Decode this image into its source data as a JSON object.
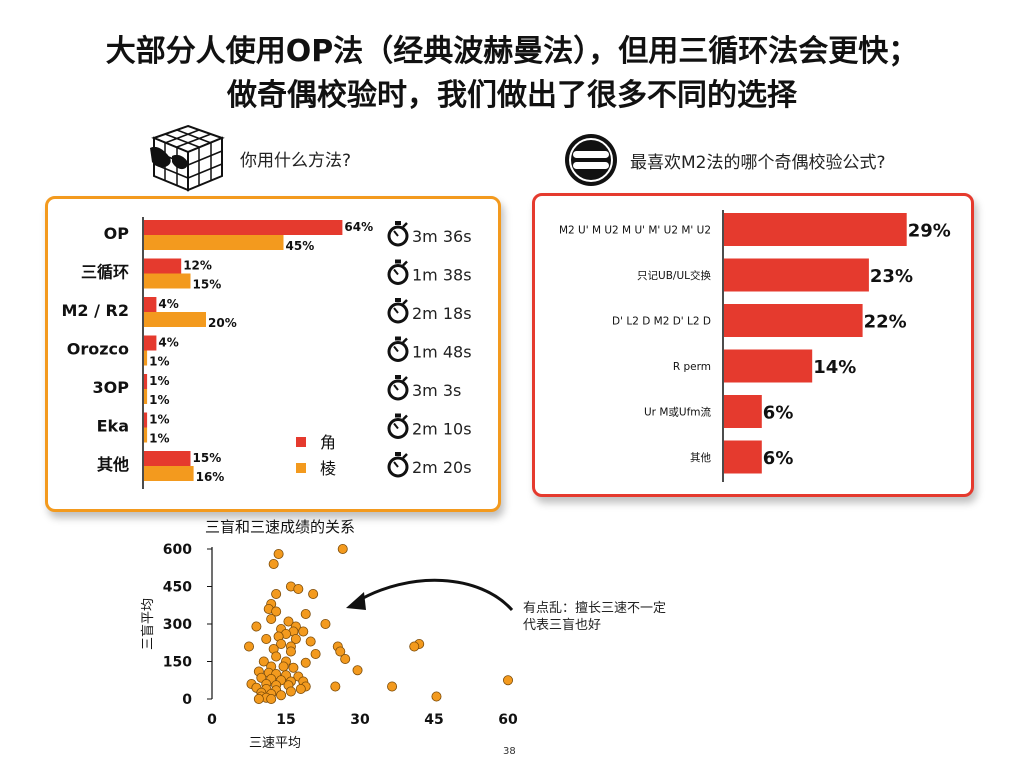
{
  "title_line1": "大部分人使用OP法（经典波赫曼法），但用三循环法会更快；",
  "title_line2": "做奇偶校验时，我们做出了很多不同的选择",
  "left_question": "你用什么方法?",
  "right_question": "最喜欢M2法的哪个奇偶校验公式?",
  "annotation": "有点乱：擅长三速不一定代表三盲也好",
  "page_number": "38",
  "colors": {
    "corner": "#e53a2e",
    "edge": "#f39a1e",
    "scatter": "#f39a1e",
    "right_bar": "#e53a2e"
  },
  "chart_data": [
    {
      "type": "bar",
      "orientation": "horizontal",
      "categories": [
        "OP",
        "三循环",
        "M2 / R2",
        "Orozco",
        "3OP",
        "Eka",
        "其他"
      ],
      "series": [
        {
          "name": "角",
          "values": [
            64,
            12,
            4,
            4,
            1,
            1,
            15
          ],
          "labels": [
            "64%",
            "12%",
            "4%",
            "4%",
            "1%",
            "1%",
            "15%"
          ]
        },
        {
          "name": "棱",
          "values": [
            45,
            15,
            20,
            1,
            1,
            1,
            16
          ],
          "labels": [
            "45%",
            "15%",
            "20%",
            "1%",
            "1%",
            "1%",
            "16%"
          ]
        }
      ],
      "times": [
        "3m 36s",
        "1m 38s",
        "2m 18s",
        "1m 48s",
        "3m 3s",
        "2m 10s",
        "2m 20s"
      ],
      "legend": "inside-bottom-right",
      "grid": false
    },
    {
      "type": "bar",
      "orientation": "horizontal",
      "categories": [
        "M2 U' M U2 M U' M' U2 M' U2",
        "只记UB/UL交换",
        "D' L2 D M2 D' L2 D",
        "R perm",
        "Ur M或Ufm流",
        "其他"
      ],
      "values": [
        29,
        23,
        22,
        14,
        6,
        6
      ],
      "labels": [
        "29%",
        "23%",
        "22%",
        "14%",
        "6%",
        "6%"
      ],
      "grid": false
    },
    {
      "type": "scatter",
      "title": "三盲和三速成绩的关系",
      "xlabel": "三速平均",
      "ylabel": "三盲平均",
      "xlim": [
        0,
        60
      ],
      "ylim": [
        0,
        600
      ],
      "xticks": [
        "0",
        "15",
        "30",
        "45",
        "60"
      ],
      "yticks": [
        "0",
        "150",
        "300",
        "450",
        "600"
      ],
      "grid": false,
      "points": [
        [
          26.5,
          600
        ],
        [
          13.5,
          580
        ],
        [
          12.5,
          540
        ],
        [
          16,
          450
        ],
        [
          17.5,
          440
        ],
        [
          13,
          420
        ],
        [
          20.5,
          420
        ],
        [
          12,
          380
        ],
        [
          11.5,
          360
        ],
        [
          13,
          350
        ],
        [
          19,
          340
        ],
        [
          12,
          320
        ],
        [
          15.5,
          310
        ],
        [
          23,
          300
        ],
        [
          9,
          290
        ],
        [
          17,
          290
        ],
        [
          14,
          280
        ],
        [
          16.5,
          270
        ],
        [
          18.5,
          270
        ],
        [
          15,
          260
        ],
        [
          13.5,
          250
        ],
        [
          11,
          240
        ],
        [
          17,
          240
        ],
        [
          20,
          230
        ],
        [
          14,
          220
        ],
        [
          7.5,
          210
        ],
        [
          16,
          210
        ],
        [
          25.5,
          210
        ],
        [
          26,
          190
        ],
        [
          42,
          220
        ],
        [
          41,
          210
        ],
        [
          12.5,
          200
        ],
        [
          16,
          190
        ],
        [
          21,
          180
        ],
        [
          13,
          170
        ],
        [
          27,
          160
        ],
        [
          10.5,
          150
        ],
        [
          15,
          150
        ],
        [
          19,
          145
        ],
        [
          12,
          130
        ],
        [
          14.5,
          130
        ],
        [
          16.5,
          125
        ],
        [
          29.5,
          115
        ],
        [
          9.5,
          110
        ],
        [
          11.5,
          105
        ],
        [
          13,
          100
        ],
        [
          15,
          95
        ],
        [
          17.5,
          90
        ],
        [
          10,
          85
        ],
        [
          12,
          80
        ],
        [
          14,
          75
        ],
        [
          16,
          70
        ],
        [
          18.5,
          70
        ],
        [
          8,
          60
        ],
        [
          11,
          60
        ],
        [
          13,
          55
        ],
        [
          15.5,
          55
        ],
        [
          19,
          50
        ],
        [
          25,
          50
        ],
        [
          36.5,
          50
        ],
        [
          9,
          45
        ],
        [
          11,
          40
        ],
        [
          13,
          35
        ],
        [
          16,
          30
        ],
        [
          18,
          40
        ],
        [
          10,
          25
        ],
        [
          12,
          20
        ],
        [
          14,
          15
        ],
        [
          10,
          10
        ],
        [
          11,
          5
        ],
        [
          9.5,
          0
        ],
        [
          12,
          0
        ],
        [
          45.5,
          10
        ],
        [
          60,
          75
        ]
      ]
    }
  ]
}
